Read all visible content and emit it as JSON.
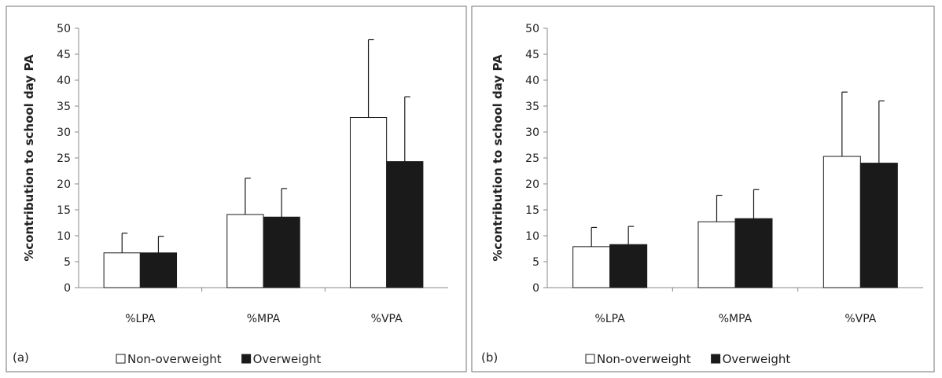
{
  "chart_data": [
    {
      "type": "bar",
      "panel_label": "(a)",
      "ylabel": "%contribution to school day PA",
      "ylim": [
        0,
        50
      ],
      "yticks": [
        0,
        5,
        10,
        15,
        20,
        25,
        30,
        35,
        40,
        45,
        50
      ],
      "categories": [
        "%LPA",
        "%MPA",
        "%VPA"
      ],
      "series": [
        {
          "name": "Non-overweight",
          "color": "#ffffff",
          "values": [
            6.7,
            14.1,
            32.8
          ],
          "error": [
            3.8,
            7.0,
            15.0
          ]
        },
        {
          "name": "Overweight",
          "color": "#1a1a1a",
          "values": [
            6.7,
            13.6,
            24.3
          ],
          "error": [
            3.2,
            5.5,
            12.5
          ]
        }
      ],
      "legend": "bottom"
    },
    {
      "type": "bar",
      "panel_label": "(b)",
      "ylabel": "%contribution to school day PA",
      "ylim": [
        0,
        50
      ],
      "yticks": [
        0,
        5,
        10,
        15,
        20,
        25,
        30,
        35,
        40,
        45,
        50
      ],
      "categories": [
        "%LPA",
        "%MPA",
        "%VPA"
      ],
      "series": [
        {
          "name": "Non-overweight",
          "color": "#ffffff",
          "values": [
            7.9,
            12.7,
            25.3
          ],
          "error": [
            3.7,
            5.1,
            12.4
          ]
        },
        {
          "name": "Overweight",
          "color": "#1a1a1a",
          "values": [
            8.3,
            13.3,
            24.0
          ],
          "error": [
            3.5,
            5.6,
            12.0
          ]
        }
      ],
      "legend": "bottom"
    }
  ]
}
